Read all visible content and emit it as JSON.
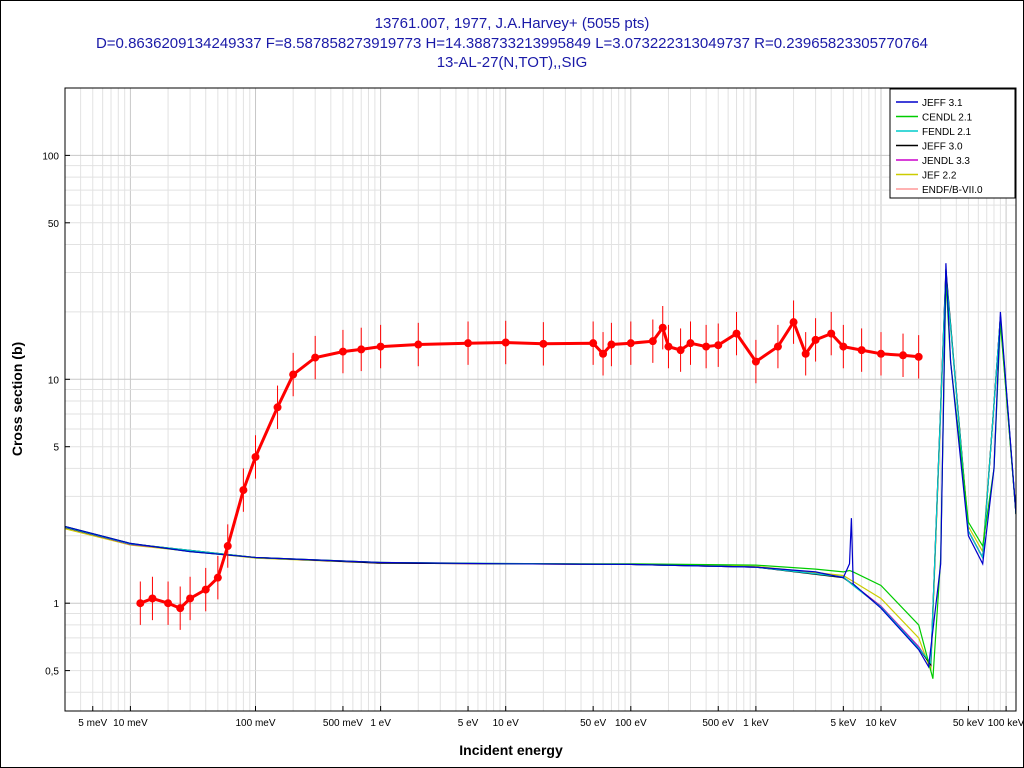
{
  "chart_data": {
    "type": "line",
    "title_lines": [
      "13761.007, 1977, J.A.Harvey+ (5055 pts)",
      "D=0.8636209134249337 F=8.587858273919773 H=14.388733213995849 L=3.073222313049737 R=0.23965823305770764",
      "13-AL-27(N,TOT),,SIG"
    ],
    "xlabel": "Incident energy",
    "ylabel": "Cross section (b)",
    "xscale": "log",
    "yscale": "log",
    "xlim": [
      0.003,
      120000
    ],
    "ylim": [
      0.33,
      200
    ],
    "grid": true,
    "legend_position": "top-right",
    "x_ticks": [
      {
        "v": 0.005,
        "label": "5 meV"
      },
      {
        "v": 0.01,
        "label": "10 meV"
      },
      {
        "v": 0.1,
        "label": "100 meV"
      },
      {
        "v": 0.5,
        "label": "500 meV"
      },
      {
        "v": 1,
        "label": "1 eV"
      },
      {
        "v": 5,
        "label": "5 eV"
      },
      {
        "v": 10,
        "label": "10 eV"
      },
      {
        "v": 50,
        "label": "50 eV"
      },
      {
        "v": 100,
        "label": "100 eV"
      },
      {
        "v": 500,
        "label": "500 eV"
      },
      {
        "v": 1000,
        "label": "1 keV"
      },
      {
        "v": 5000,
        "label": "5 keV"
      },
      {
        "v": 10000,
        "label": "10 keV"
      },
      {
        "v": 50000,
        "label": "50 keV"
      },
      {
        "v": 100000,
        "label": "100 keV"
      }
    ],
    "y_ticks": [
      {
        "v": 0.5,
        "label": "0,5"
      },
      {
        "v": 1,
        "label": "1"
      },
      {
        "v": 5,
        "label": "5"
      },
      {
        "v": 10,
        "label": "10"
      },
      {
        "v": 50,
        "label": "50"
      },
      {
        "v": 100,
        "label": "100"
      }
    ],
    "series": [
      {
        "name": "JEFF 3.1",
        "color": "#0000cc",
        "style": "line",
        "x": [
          0.003,
          0.01,
          0.03,
          0.1,
          1,
          10,
          100,
          1000,
          3000,
          5000,
          5600,
          5800,
          6000,
          10000,
          20000,
          24000,
          30000,
          33000,
          36000,
          50000,
          65000,
          80000,
          90000,
          120000
        ],
        "y": [
          2.2,
          1.85,
          1.7,
          1.6,
          1.52,
          1.5,
          1.49,
          1.45,
          1.38,
          1.3,
          1.5,
          2.4,
          1.22,
          0.95,
          0.62,
          0.52,
          1.5,
          33,
          12,
          2.0,
          1.5,
          4,
          20,
          2.5
        ]
      },
      {
        "name": "CENDL 2.1",
        "color": "#00cc00",
        "style": "line",
        "x": [
          0.003,
          0.01,
          0.03,
          0.1,
          1,
          10,
          100,
          1000,
          3000,
          5000,
          5600,
          6000,
          10000,
          20000,
          26000,
          30000,
          33000,
          36000,
          50000,
          65000,
          80000,
          90000,
          120000
        ],
        "y": [
          2.2,
          1.85,
          1.7,
          1.6,
          1.52,
          1.5,
          1.5,
          1.48,
          1.42,
          1.38,
          1.4,
          1.38,
          1.2,
          0.8,
          0.46,
          1.6,
          28,
          12,
          2.3,
          1.8,
          4,
          18,
          2.5
        ]
      },
      {
        "name": "FENDL 2.1",
        "color": "#00cccc",
        "style": "line",
        "x": [
          0.003,
          0.01,
          0.1,
          1,
          100,
          1000,
          5000,
          6000,
          10000,
          20000,
          25000,
          33000,
          50000,
          65000,
          90000,
          120000
        ],
        "y": [
          2.19,
          1.84,
          1.6,
          1.52,
          1.49,
          1.45,
          1.31,
          1.2,
          0.96,
          0.63,
          0.54,
          30,
          2.1,
          1.6,
          19,
          2.5
        ]
      },
      {
        "name": "JEFF 3.0",
        "color": "#000000",
        "style": "line",
        "x": [
          0.003,
          0.01,
          0.1,
          1,
          100,
          1000,
          5000,
          6000,
          10000,
          20000,
          25000,
          33000,
          50000,
          65000,
          90000,
          120000
        ],
        "y": [
          2.18,
          1.84,
          1.6,
          1.51,
          1.49,
          1.45,
          1.3,
          1.21,
          0.96,
          0.63,
          0.53,
          31,
          2.1,
          1.6,
          19,
          2.5
        ]
      },
      {
        "name": "JENDL 3.3",
        "color": "#cc00cc",
        "style": "line",
        "x": [
          0.003,
          0.01,
          0.1,
          1,
          100,
          1000,
          5000,
          6000,
          10000,
          20000,
          25000,
          33000,
          50000,
          65000,
          90000,
          120000
        ],
        "y": [
          2.18,
          1.83,
          1.6,
          1.51,
          1.49,
          1.45,
          1.31,
          1.21,
          0.97,
          0.64,
          0.53,
          30,
          2.1,
          1.6,
          19,
          2.5
        ]
      },
      {
        "name": "JEF 2.2",
        "color": "#cccc00",
        "style": "line",
        "x": [
          0.003,
          0.01,
          0.1,
          1,
          100,
          1000,
          5000,
          6000,
          10000,
          20000,
          25000,
          33000,
          50000,
          65000,
          90000,
          120000
        ],
        "y": [
          2.15,
          1.82,
          1.59,
          1.51,
          1.49,
          1.46,
          1.33,
          1.25,
          1.05,
          0.7,
          0.5,
          29,
          2.2,
          1.7,
          18,
          2.5
        ]
      },
      {
        "name": "ENDF/B-VII.0",
        "color": "#ff9999",
        "style": "line",
        "x": [
          0.003,
          0.01,
          0.1,
          1,
          100,
          1000,
          5000,
          6000,
          10000,
          20000,
          25000,
          33000,
          50000,
          65000,
          90000,
          120000
        ],
        "y": [
          2.19,
          1.84,
          1.6,
          1.52,
          1.49,
          1.45,
          1.31,
          1.2,
          0.96,
          0.63,
          0.53,
          30,
          2.1,
          1.6,
          19,
          2.5
        ]
      },
      {
        "name": "",
        "color": "#ff0000",
        "style": "scatter-with-errors",
        "x": [
          0.012,
          0.015,
          0.02,
          0.025,
          0.03,
          0.04,
          0.05,
          0.06,
          0.08,
          0.1,
          0.15,
          0.2,
          0.3,
          0.5,
          0.7,
          1,
          2,
          5,
          10,
          20,
          50,
          60,
          70,
          100,
          150,
          180,
          200,
          250,
          300,
          400,
          500,
          700,
          1000,
          1500,
          2000,
          2500,
          3000,
          4000,
          5000,
          7000,
          10000,
          15000,
          20000
        ],
        "y": [
          1.0,
          1.05,
          1.0,
          0.95,
          1.05,
          1.15,
          1.3,
          1.8,
          3.2,
          4.5,
          7.5,
          10.5,
          12.5,
          13.3,
          13.6,
          14,
          14.3,
          14.5,
          14.6,
          14.4,
          14.5,
          13.0,
          14.3,
          14.5,
          14.8,
          17,
          14,
          13.5,
          14.5,
          14,
          14.2,
          16,
          12,
          14,
          18,
          13,
          15,
          16,
          14,
          13.5,
          13,
          12.8,
          12.6
        ]
      }
    ]
  }
}
